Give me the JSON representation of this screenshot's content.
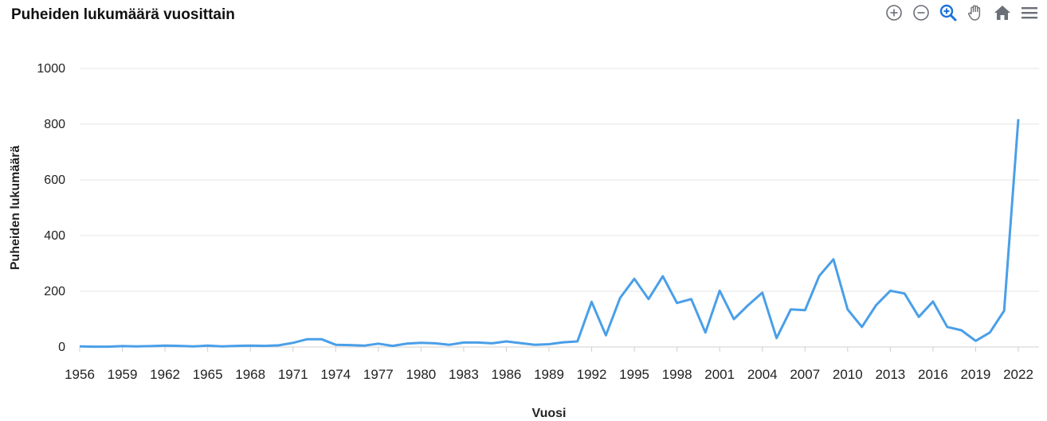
{
  "header": {
    "title": "Puheiden lukumäärä vuosittain"
  },
  "toolbar": {
    "icons": [
      "zoom-in-icon",
      "zoom-out-icon",
      "selection-zoom-icon",
      "pan-hand-icon",
      "reset-home-icon",
      "menu-icon"
    ],
    "accent": "#1a73d9",
    "muted": "#6b6f76"
  },
  "chart_data": {
    "type": "line",
    "title": "Puheiden lukumäärä vuosittain",
    "xlabel": "Vuosi",
    "ylabel": "Puheiden lukumäärä",
    "ylim": [
      0,
      1000
    ],
    "yticks": [
      0,
      200,
      400,
      600,
      800,
      1000
    ],
    "xticks": [
      1956,
      1959,
      1962,
      1965,
      1968,
      1971,
      1974,
      1977,
      1980,
      1983,
      1986,
      1989,
      1992,
      1995,
      1998,
      2001,
      2004,
      2007,
      2010,
      2013,
      2016,
      2019,
      2022
    ],
    "grid": true,
    "line_color": "#4a9fe8",
    "x": [
      1956,
      1957,
      1958,
      1959,
      1960,
      1961,
      1962,
      1963,
      1964,
      1965,
      1966,
      1967,
      1968,
      1969,
      1970,
      1971,
      1972,
      1973,
      1974,
      1975,
      1976,
      1977,
      1978,
      1979,
      1980,
      1981,
      1982,
      1983,
      1984,
      1985,
      1986,
      1987,
      1988,
      1989,
      1990,
      1991,
      1992,
      1993,
      1994,
      1995,
      1996,
      1997,
      1998,
      1999,
      2000,
      2001,
      2002,
      2003,
      2004,
      2005,
      2006,
      2007,
      2008,
      2009,
      2010,
      2011,
      2012,
      2013,
      2014,
      2015,
      2016,
      2017,
      2018,
      2019,
      2020,
      2021,
      2022
    ],
    "series": [
      {
        "values": [
          2,
          1,
          1,
          3,
          2,
          3,
          5,
          4,
          2,
          5,
          2,
          4,
          5,
          4,
          6,
          15,
          28,
          28,
          8,
          7,
          5,
          12,
          4,
          12,
          15,
          13,
          8,
          16,
          16,
          13,
          20,
          14,
          8,
          10,
          17,
          20,
          162,
          42,
          176,
          245,
          172,
          254,
          158,
          172,
          52,
          202,
          100,
          150,
          195,
          32,
          135,
          132,
          255,
          315,
          135,
          72,
          150,
          202,
          192,
          108,
          163,
          72,
          60,
          22,
          52,
          130,
          818
        ]
      }
    ]
  },
  "axes": {
    "x_title": "Vuosi",
    "y_title": "Puheiden lukumäärä"
  }
}
